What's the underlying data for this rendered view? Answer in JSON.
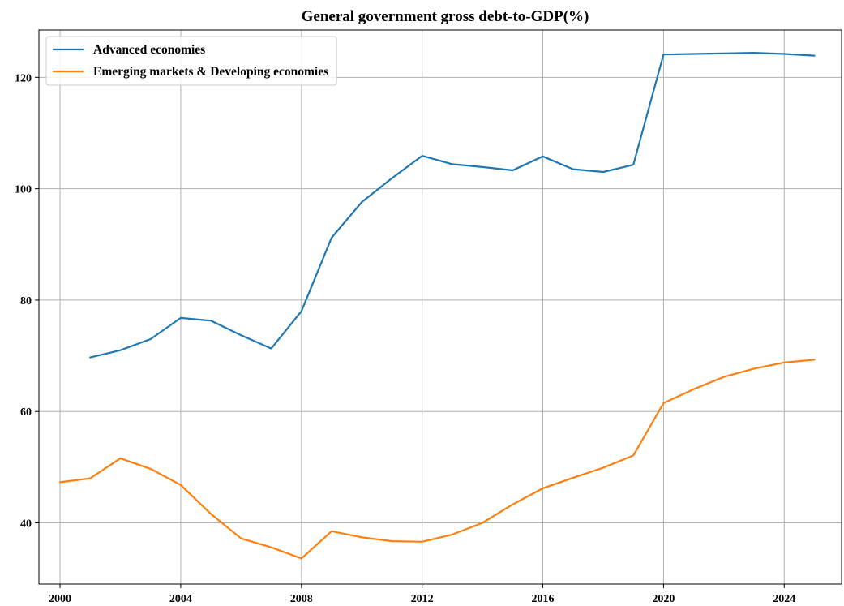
{
  "chart_data": {
    "type": "line",
    "title": "General government gross debt-to-GDP(%)",
    "xlabel": "",
    "ylabel": "",
    "xlim": [
      1999.3,
      2025.9
    ],
    "ylim": [
      29.0,
      128.5
    ],
    "xticks": [
      2000,
      2004,
      2008,
      2012,
      2016,
      2020,
      2024
    ],
    "yticks": [
      40,
      60,
      80,
      100,
      120
    ],
    "grid": true,
    "legend_position": "top-left",
    "series": [
      {
        "name": "Advanced economies",
        "color": "#1f77b4",
        "x": [
          2001,
          2002,
          2003,
          2004,
          2005,
          2006,
          2007,
          2008,
          2009,
          2010,
          2011,
          2012,
          2013,
          2014,
          2015,
          2016,
          2017,
          2018,
          2019,
          2020,
          2021,
          2022,
          2023,
          2024,
          2025
        ],
        "y": [
          69.7,
          71.0,
          73.0,
          76.8,
          76.3,
          73.7,
          71.3,
          78.0,
          91.2,
          97.6,
          101.9,
          105.9,
          104.4,
          103.9,
          103.3,
          105.8,
          103.5,
          103.0,
          104.3,
          124.1,
          124.2,
          124.3,
          124.4,
          124.2,
          123.9
        ]
      },
      {
        "name": "Emerging markets & Developing economies",
        "color": "#ff7f0e",
        "x": [
          2000,
          2001,
          2002,
          2003,
          2004,
          2005,
          2006,
          2007,
          2008,
          2009,
          2010,
          2011,
          2012,
          2013,
          2014,
          2015,
          2016,
          2017,
          2018,
          2019,
          2020,
          2021,
          2022,
          2023,
          2024,
          2025
        ],
        "y": [
          47.3,
          48.0,
          51.6,
          49.7,
          46.8,
          41.6,
          37.2,
          35.6,
          33.6,
          38.5,
          37.4,
          36.7,
          36.6,
          37.9,
          40.0,
          43.3,
          46.2,
          48.1,
          49.9,
          52.1,
          61.5,
          64.0,
          66.2,
          67.7,
          68.8,
          69.3
        ]
      }
    ]
  }
}
